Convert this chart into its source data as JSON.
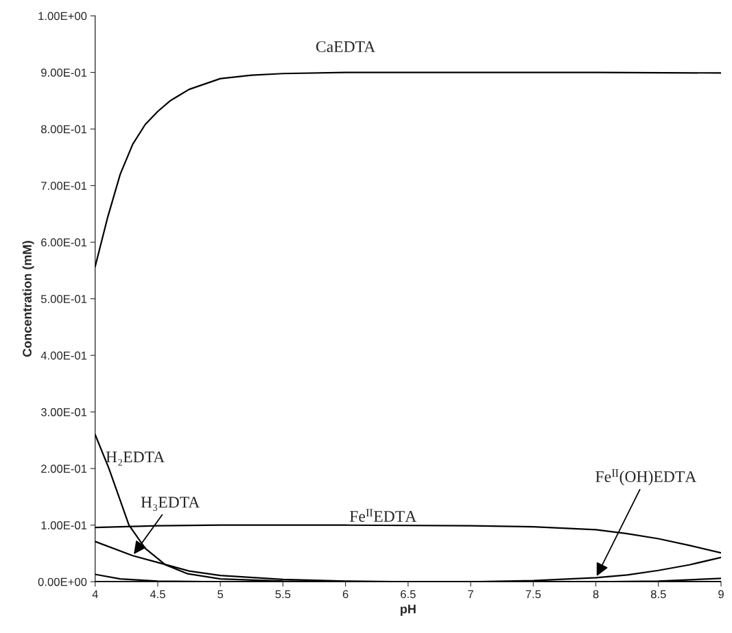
{
  "chart_data": {
    "type": "line",
    "xlabel": "pH",
    "ylabel": "Concentration (mM)",
    "xlim": [
      4,
      9
    ],
    "xticks": [
      4,
      4.5,
      5,
      5.5,
      6,
      6.5,
      7,
      7.5,
      8,
      8.5,
      9
    ],
    "ylim": [
      0,
      1.0
    ],
    "yticks": [
      {
        "value": 0,
        "label": "0.00E+00"
      },
      {
        "value": 0.1,
        "label": "1.00E-01"
      },
      {
        "value": 0.2,
        "label": "2.00E-01"
      },
      {
        "value": 0.3,
        "label": "3.00E-01"
      },
      {
        "value": 0.4,
        "label": "4.00E-01"
      },
      {
        "value": 0.5,
        "label": "5.00E-01"
      },
      {
        "value": 0.6,
        "label": "6.00E-01"
      },
      {
        "value": 0.7,
        "label": "7.00E-01"
      },
      {
        "value": 0.8,
        "label": "8.00E-01"
      },
      {
        "value": 0.9,
        "label": "9.00E-01"
      },
      {
        "value": 1.0,
        "label": "1.00E+00"
      }
    ],
    "grid": false,
    "legend": false,
    "marker": "none",
    "line_style": "solid",
    "series": [
      {
        "name": "CaEDTA",
        "color": "#000000",
        "x": [
          4.0,
          4.1,
          4.2,
          4.3,
          4.4,
          4.5,
          4.6,
          4.75,
          5.0,
          5.25,
          5.5,
          6.0,
          7.0,
          8.0,
          9.0
        ],
        "values": [
          0.557,
          0.644,
          0.72,
          0.773,
          0.808,
          0.831,
          0.85,
          0.87,
          0.889,
          0.895,
          0.898,
          0.9,
          0.9,
          0.9,
          0.899
        ]
      },
      {
        "name": "H₂EDTA",
        "color": "#000000",
        "x": [
          4.0,
          4.11,
          4.27,
          4.4,
          4.56,
          4.74,
          5.0,
          5.5,
          6.0,
          9.0
        ],
        "values": [
          0.26,
          0.2,
          0.1,
          0.059,
          0.03,
          0.014,
          0.005,
          0.001,
          0.0,
          0.0
        ]
      },
      {
        "name": "H₃EDTA",
        "color": "#000000",
        "x": [
          4.0,
          4.3,
          4.5,
          4.75,
          5.0,
          5.5,
          6.0,
          6.5,
          9.0
        ],
        "values": [
          0.071,
          0.046,
          0.034,
          0.019,
          0.011,
          0.004,
          0.001,
          0.0,
          0.0
        ]
      },
      {
        "name": "Fe$^{II}$EDTA",
        "color": "#000000",
        "x": [
          4.0,
          4.5,
          5.0,
          6.0,
          7.0,
          7.5,
          8.0,
          8.25,
          8.5,
          8.75,
          9.0
        ],
        "values": [
          0.096,
          0.099,
          0.1,
          0.1,
          0.099,
          0.097,
          0.092,
          0.085,
          0.076,
          0.064,
          0.051
        ]
      },
      {
        "name": "Fe$^{II}$(OH)EDTA",
        "color": "#000000",
        "x": [
          4.0,
          7.0,
          7.5,
          8.0,
          8.25,
          8.5,
          8.75,
          9.0
        ],
        "values": [
          0.0,
          0.0,
          0.002,
          0.007,
          0.012,
          0.02,
          0.03,
          0.043
        ]
      },
      {
        "color": "#000000",
        "x": [
          4.0,
          4.2,
          4.5,
          5.0,
          9.0
        ],
        "values": [
          0.013,
          0.005,
          0.001,
          0.0,
          0.0
        ]
      },
      {
        "color": "#000000",
        "x": [
          4.0,
          8.0,
          8.5,
          9.0
        ],
        "values": [
          0.0,
          0.0,
          0.001,
          0.006
        ]
      }
    ]
  }
}
